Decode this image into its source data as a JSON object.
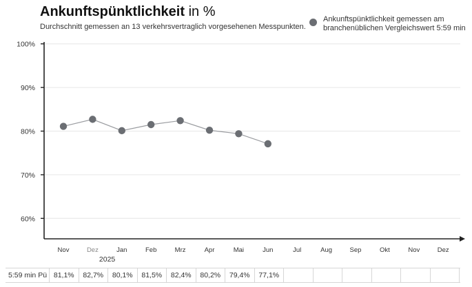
{
  "header": {
    "title_bold": "Ankunftspünktlichkeit",
    "title_rest": " in %",
    "subtitle": "Durchschnitt gemessen an 13 verkehrsvertraglich vorgesehenen Messpunkten."
  },
  "legend": {
    "label": "Ankunftspünktlichkeit gemessen am branchenüblichen Vergleichswert 5:59 min",
    "color": "#6b6e73"
  },
  "chart_data": {
    "type": "line",
    "categories": [
      "Nov",
      "Dez",
      "Jan",
      "Feb",
      "Mrz",
      "Apr",
      "Mai",
      "Jun",
      "Jul",
      "Aug",
      "Sep",
      "Okt",
      "Nov",
      "Dez"
    ],
    "year_label": "2025",
    "y_ticks": [
      "100%",
      "90%",
      "80%",
      "70%",
      "60%"
    ],
    "ylim": [
      55,
      100
    ],
    "series": [
      {
        "name": "Ankunftspünktlichkeit gemessen am branchenüblichen Vergleichswert 5:59 min",
        "values": [
          81.1,
          82.7,
          80.1,
          81.5,
          82.4,
          80.2,
          79.4,
          77.1,
          null,
          null,
          null,
          null,
          null,
          null
        ],
        "color": "#6b6e73"
      }
    ],
    "table": {
      "row_label": "5:59 min Pü",
      "values": [
        "81,1%",
        "82,7%",
        "80,1%",
        "81,5%",
        "82,4%",
        "80,2%",
        "79,4%",
        "77,1%",
        "",
        "",
        "",
        "",
        "",
        ""
      ]
    }
  }
}
